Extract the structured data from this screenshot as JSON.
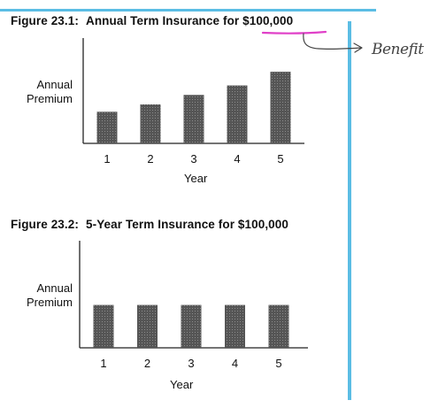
{
  "chart_data": [
    {
      "type": "bar",
      "title_prefix": "Figure 23.1:",
      "title_main": "Annual Term Insurance for ",
      "title_amount": "$100,000",
      "categories": [
        "1",
        "2",
        "3",
        "4",
        "5"
      ],
      "values": [
        30,
        37,
        46,
        55,
        68
      ],
      "xlabel": "Year",
      "ylabel_line1": "Annual",
      "ylabel_line2": "Premium",
      "ylim": [
        0,
        100
      ],
      "bar_color": "#555555"
    },
    {
      "type": "bar",
      "title_prefix": "Figure 23.2:",
      "title_main": "5-Year Term Insurance for $100,000",
      "categories": [
        "1",
        "2",
        "3",
        "4",
        "5"
      ],
      "values": [
        40,
        40,
        40,
        40,
        40
      ],
      "xlabel": "Year",
      "ylabel_line1": "Annual",
      "ylabel_line2": "Premium",
      "ylim": [
        0,
        100
      ],
      "bar_color": "#555555"
    }
  ],
  "annotation": {
    "text": "Benefit",
    "underline_color": "#e040c8",
    "ink_color": "#444444"
  },
  "frame_color": "#5bbde4"
}
